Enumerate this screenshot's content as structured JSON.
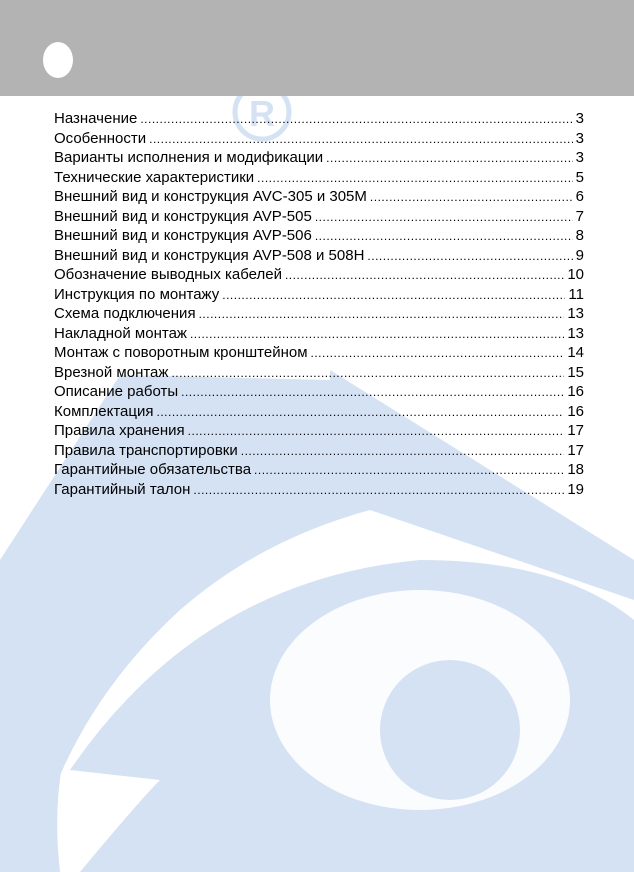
{
  "colors": {
    "header": "#b3b3b3",
    "watermark": "#d4e2f3"
  },
  "watermark": {
    "logo": "®"
  },
  "toc": [
    {
      "title": "Назначение",
      "page": "3"
    },
    {
      "title": "Особенности",
      "page": "3"
    },
    {
      "title": "Варианты исполнения и модификации",
      "page": "3"
    },
    {
      "title": "Технические характеристики",
      "page": "5"
    },
    {
      "title": "Внешний вид и конструкция AVC-305 и 305M",
      "page": "6"
    },
    {
      "title": "Внешний вид и конструкция AVP-505",
      "page": "7"
    },
    {
      "title": "Внешний вид и конструкция AVP-506",
      "page": "8"
    },
    {
      "title": "Внешний вид и конструкция AVP-508 и 508H",
      "page": "9"
    },
    {
      "title": "Обозначение выводных кабелей",
      "page": "10"
    },
    {
      "title": "Инструкция по монтажу",
      "page": "11"
    },
    {
      "title": "Схема подключения",
      "page": "13"
    },
    {
      "title": "Накладной монтаж",
      "page": "13"
    },
    {
      "title": "Монтаж с поворотным кронштейном",
      "page": "14"
    },
    {
      "title": "Врезной монтаж",
      "page": "15"
    },
    {
      "title": "Описание работы",
      "page": "16"
    },
    {
      "title": "Комплектация",
      "page": "16"
    },
    {
      "title": "Правила хранения",
      "page": "17"
    },
    {
      "title": "Правила транспортировки",
      "page": "17"
    },
    {
      "title": "Гарантийные обязательства",
      "page": "18"
    },
    {
      "title": "Гарантийный талон",
      "page": "19"
    }
  ]
}
